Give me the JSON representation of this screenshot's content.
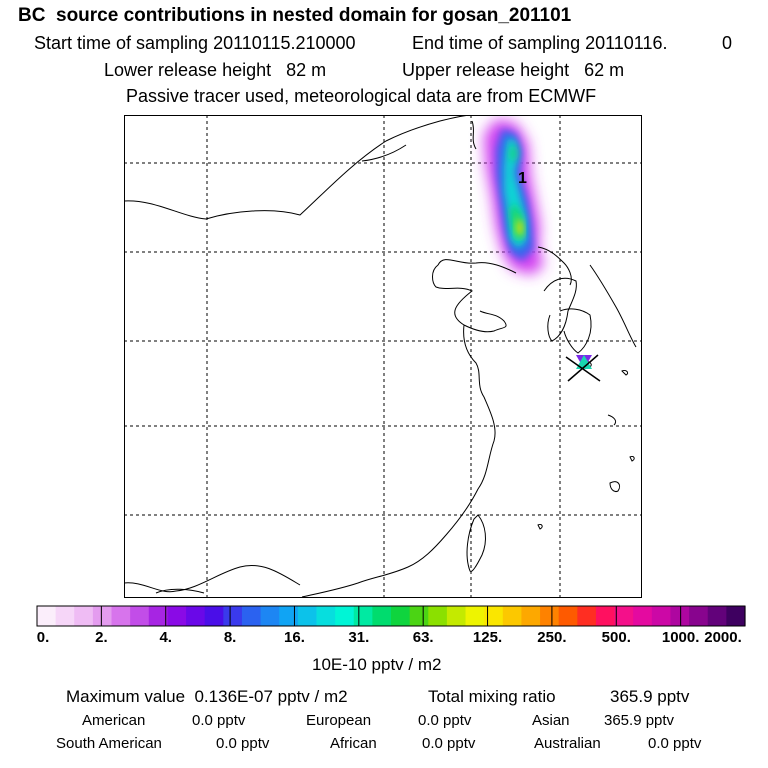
{
  "header": {
    "title": "BC  source contributions in nested domain for gosan_201101",
    "start_sampling": "Start time of sampling 20110115.210000",
    "end_sampling": "End time of sampling 20110116.",
    "end_sampling_suffix": "0",
    "lower_release": "Lower release height   82 m",
    "upper_release": "Upper release height   62 m",
    "tracer_info": "Passive tracer used, meteorological data are from ECMWF"
  },
  "chart_data": {
    "type": "heatmap",
    "title": "BC  source contributions in nested domain for gosan_201101",
    "map_annotation": "1",
    "receptor_marker": "gosan",
    "colorbar": {
      "tick_labels": [
        "0.",
        "2.",
        "4.",
        "8.",
        "16.",
        "31.",
        "63.",
        "125.",
        "250.",
        "500.",
        "1000.",
        "2000."
      ],
      "colors": [
        "#fbeefb",
        "#f6d6f8",
        "#efbcf4",
        "#e49cef",
        "#d774ec",
        "#c24de8",
        "#a725e3",
        "#8a0ae6",
        "#6a08e8",
        "#4a0ee8",
        "#3a3aec",
        "#2b62f0",
        "#1d86f3",
        "#10a4f4",
        "#0cc2ea",
        "#07dede",
        "#00f5d6",
        "#00eaa2",
        "#00dc6e",
        "#0fd43e",
        "#4bd414",
        "#8be000",
        "#c4ea00",
        "#eef400",
        "#fae600",
        "#fcc800",
        "#fda800",
        "#fe8200",
        "#fe5a00",
        "#ff2e22",
        "#ff1060",
        "#f4108a",
        "#e40aa0",
        "#cc08a6",
        "#ae06a0",
        "#88048e",
        "#62027a",
        "#3e0060"
      ],
      "units": "10E-10 pptv / m2"
    }
  },
  "summary": {
    "max_value": "Maximum value  0.136E-07 pptv / m2",
    "total_label": "Total mixing ratio",
    "total_value": "365.9 pptv",
    "regions": [
      {
        "name": "American",
        "value": "0.0 pptv"
      },
      {
        "name": "European",
        "value": "0.0 pptv"
      },
      {
        "name": "Asian",
        "value": "365.9 pptv"
      },
      {
        "name": "South American",
        "value": "0.0 pptv"
      },
      {
        "name": "African",
        "value": "0.0 pptv"
      },
      {
        "name": "Australian",
        "value": "0.0 pptv"
      }
    ]
  }
}
